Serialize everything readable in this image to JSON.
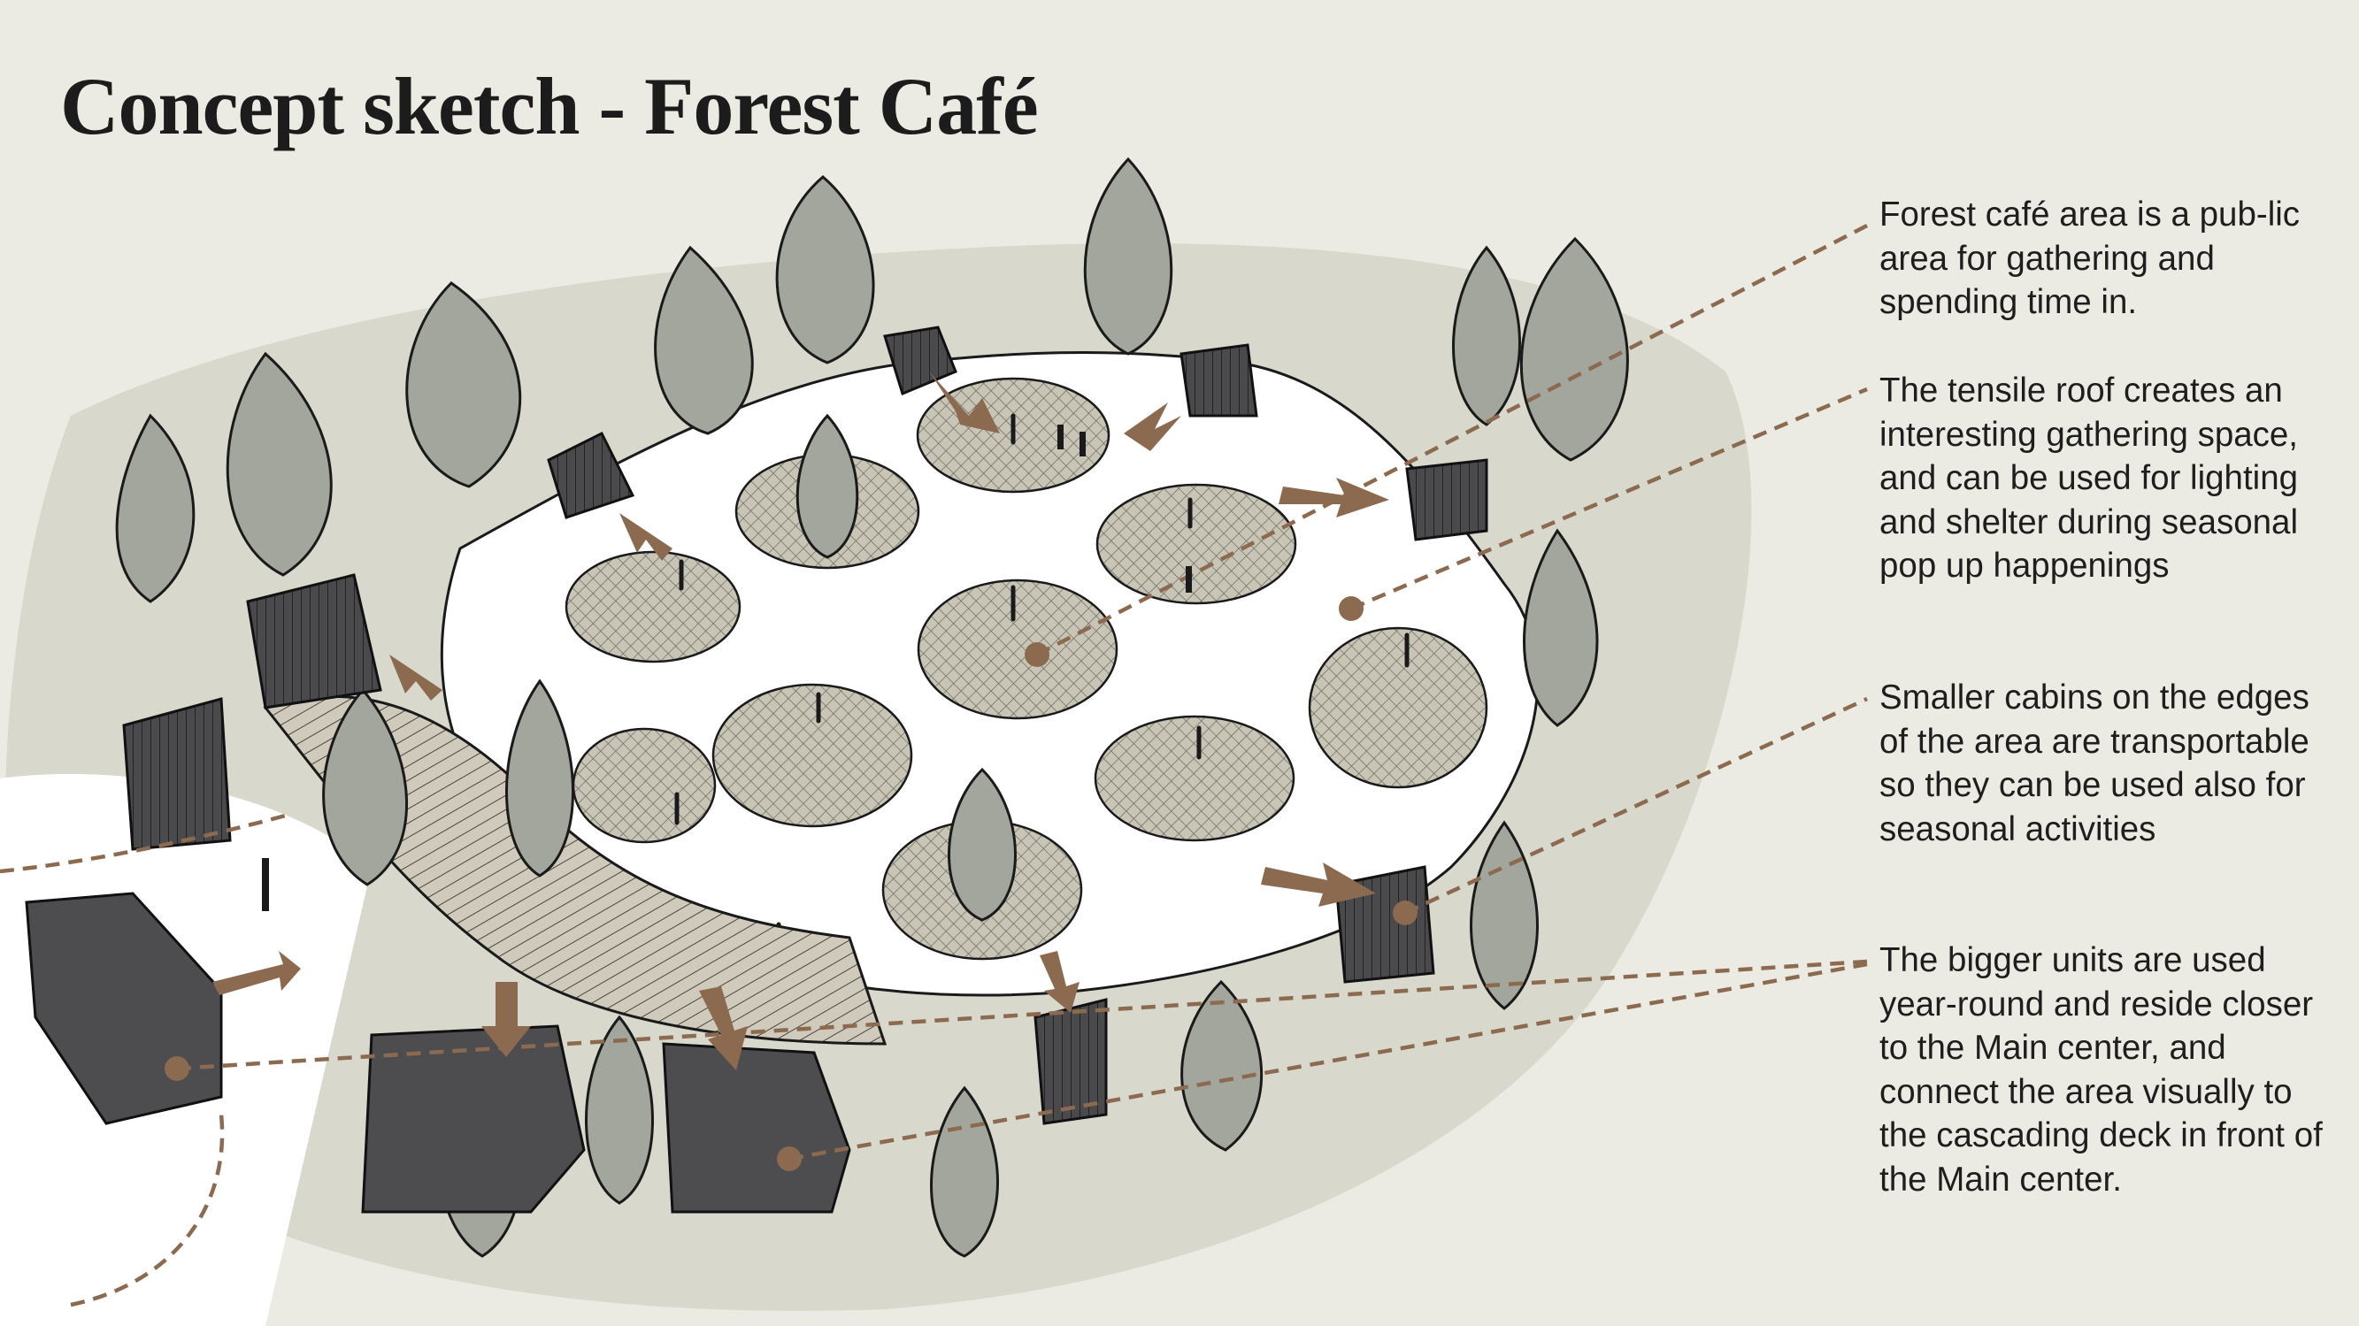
{
  "title": "Concept sketch - Forest Café",
  "notes": [
    "Forest café area is a pub-lic area for gathering and spending time in.",
    "The tensile roof creates an interesting gathering space, and can be used for lighting and shelter during seasonal pop up happenings",
    "Smaller cabins on the edges of the area are transportable so they can be used also for seasonal activities",
    "The bigger units are used year-round and reside closer to the Main center, and connect the area visually to the cascading deck in front of the Main center."
  ],
  "colors": {
    "background": "#ecebe3",
    "ground": "#dcdbd1",
    "foliage": "#a3a69c",
    "ink": "#1a1a1a",
    "accent": "#8b6a50",
    "roof": "#ffffff",
    "building": "#4d4d4f"
  }
}
